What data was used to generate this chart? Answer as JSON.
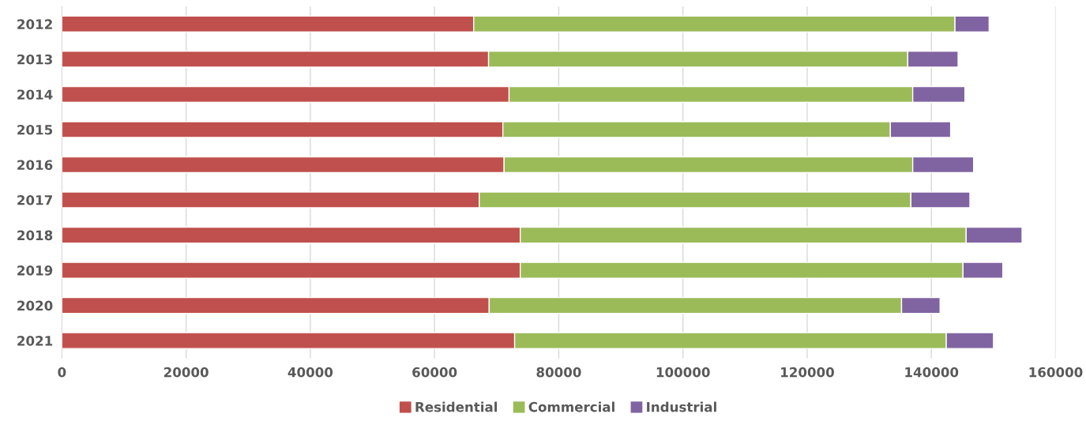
{
  "chart_data": {
    "type": "bar",
    "orientation": "horizontal",
    "stacked": true,
    "categories": [
      "2012",
      "2013",
      "2014",
      "2015",
      "2016",
      "2017",
      "2018",
      "2019",
      "2020",
      "2021"
    ],
    "series": [
      {
        "name": "Residential",
        "color": "#c0504d",
        "values": [
          66300,
          68700,
          72000,
          71000,
          71200,
          67200,
          73800,
          73800,
          68800,
          72900
        ]
      },
      {
        "name": "Commercial",
        "color": "#9bbb59",
        "values": [
          77500,
          67500,
          65000,
          62400,
          65800,
          69500,
          71800,
          71300,
          66400,
          69500
        ]
      },
      {
        "name": "Industrial",
        "color": "#8064a2",
        "values": [
          5500,
          8100,
          8400,
          9700,
          9800,
          9500,
          9000,
          6400,
          6200,
          7600
        ]
      }
    ],
    "xlim": [
      0,
      160000
    ],
    "xticks": [
      0,
      20000,
      40000,
      60000,
      80000,
      100000,
      120000,
      140000,
      160000
    ],
    "grid": "x",
    "legend": "bottom"
  }
}
